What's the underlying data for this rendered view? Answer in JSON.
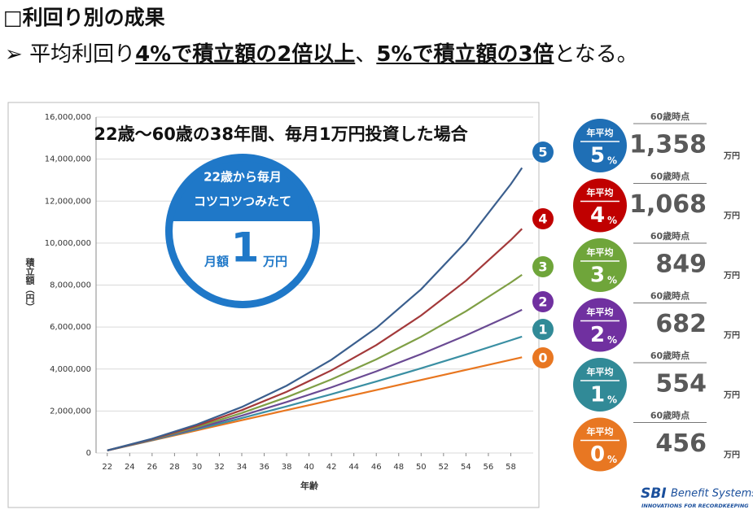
{
  "header": {
    "title": "□利回り別の成果",
    "bullet": "➢",
    "segments": [
      {
        "text": "平均利回り",
        "emphasis": false
      },
      {
        "text": "4%で積立額の2倍以上",
        "emphasis": true
      },
      {
        "text": "、",
        "emphasis": false
      },
      {
        "text": "5%で積立額の3倍",
        "emphasis": true
      },
      {
        "text": "となる。",
        "emphasis": false
      }
    ]
  },
  "chart_data": {
    "type": "line",
    "annotation": "22歳～60歳の38年間、毎月1万円投資した場合",
    "badge": {
      "line1": "22歳から毎月",
      "line2": "コツコツつみたて",
      "pre": "月額",
      "amount": "1",
      "unit": "万円"
    },
    "x_label": "年齢",
    "y_label": "積立額（円）",
    "x": [
      22,
      26,
      30,
      34,
      38,
      42,
      46,
      50,
      54,
      58,
      59
    ],
    "xlim": [
      21,
      60
    ],
    "xticks": [
      22,
      24,
      26,
      28,
      30,
      32,
      34,
      36,
      38,
      40,
      42,
      44,
      46,
      48,
      50,
      52,
      54,
      56,
      58
    ],
    "ylim": [
      0,
      16000000
    ],
    "yticks": [
      0,
      {
        "value": 2000000,
        "label": "2,000,000"
      },
      {
        "value": 4000000,
        "label": "4,000,000"
      },
      {
        "value": 6000000,
        "label": "6,000,000"
      },
      {
        "value": 8000000,
        "label": "8,000,000"
      },
      {
        "value": 10000000,
        "label": "10,000,000"
      },
      {
        "value": 12000000,
        "label": "12,000,000"
      },
      {
        "value": 14000000,
        "label": "14,000,000"
      },
      {
        "value": 16000000,
        "label": "16,000,000"
      }
    ],
    "series": [
      {
        "name": "0",
        "color": "#e8761f",
        "label_y": 440,
        "values": [
          120000,
          600000,
          1080000,
          1560000,
          2040000,
          2520000,
          3000000,
          3480000,
          3960000,
          4440000,
          4560000
        ]
      },
      {
        "name": "1",
        "color": "#3a8fa3",
        "label_y": 405,
        "values": [
          120600,
          615000,
          1129600,
          1665200,
          2222600,
          2802800,
          3406600,
          4035100,
          4689200,
          5370000,
          5544500
        ]
      },
      {
        "name": "2",
        "color": "#6a4a93",
        "label_y": 371,
        "values": [
          121100,
          630500,
          1182200,
          1779900,
          2427200,
          3128500,
          3888200,
          4711000,
          5602300,
          6567800,
          6821500
        ]
      },
      {
        "name": "3",
        "color": "#7f9f45",
        "label_y": 328,
        "values": [
          121700,
          646500,
          1238100,
          1905000,
          2656900,
          3504500,
          4460000,
          5537200,
          6751600,
          8120600,
          8489300
        ]
      },
      {
        "name": "4",
        "color": "#a3393a",
        "label_y": 269,
        "values": [
          122200,
          663000,
          1297300,
          2041700,
          2914900,
          3939400,
          5141300,
          6551200,
          8205200,
          10145800,
          10681300
        ]
      },
      {
        "name": "5",
        "color": "#3b5f8e",
        "label_y": 187,
        "values": [
          122800,
          680000,
          1360600,
          2191100,
          3205300,
          4443400,
          5955100,
          7800600,
          10053600,
          12804200,
          13582200
        ]
      }
    ]
  },
  "panels": [
    {
      "heading": "年平均",
      "rate": "5",
      "unit": "%",
      "at": "60歳時点",
      "amount": "1,358",
      "amount_unit": "万円",
      "color": "#1f6fb5"
    },
    {
      "heading": "年平均",
      "rate": "4",
      "unit": "%",
      "at": "60歳時点",
      "amount": "1,068",
      "amount_unit": "万円",
      "color": "#c00000"
    },
    {
      "heading": "年平均",
      "rate": "3",
      "unit": "%",
      "at": "60歳時点",
      "amount": "849",
      "amount_unit": "万円",
      "color": "#6fa53a"
    },
    {
      "heading": "年平均",
      "rate": "2",
      "unit": "%",
      "at": "60歳時点",
      "amount": "682",
      "amount_unit": "万円",
      "color": "#7030a0"
    },
    {
      "heading": "年平均",
      "rate": "1",
      "unit": "%",
      "at": "60歳時点",
      "amount": "554",
      "amount_unit": "万円",
      "color": "#318a97"
    },
    {
      "heading": "年平均",
      "rate": "0",
      "unit": "%",
      "at": "60歳時点",
      "amount": "456",
      "amount_unit": "万円",
      "color": "#e87722"
    }
  ],
  "logo": {
    "mark": "SBI",
    "name": "Benefit Systems",
    "tagline": "INNOVATIONS FOR RECORDKEEPING"
  }
}
